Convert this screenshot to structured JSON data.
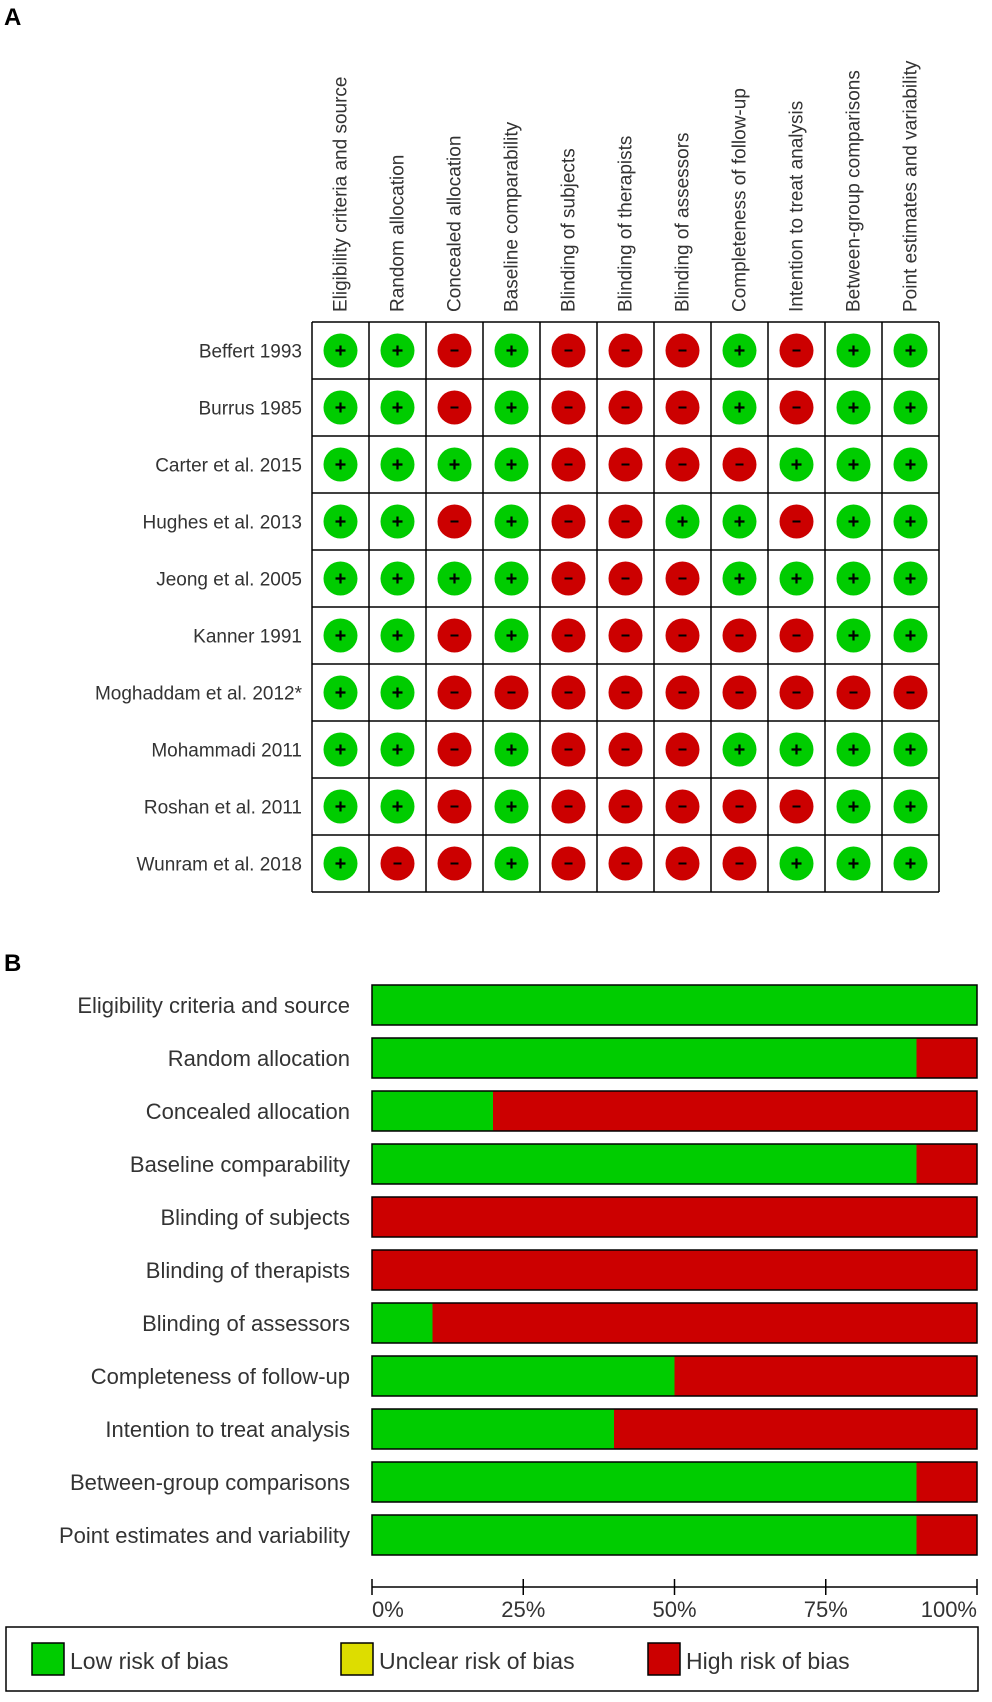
{
  "panels": {
    "a_label": "A",
    "b_label": "B"
  },
  "colors": {
    "low": "#00cc00",
    "unclear": "#dddd00",
    "high": "#cc0000",
    "border": "#000000"
  },
  "chart_data": [
    {
      "type": "table",
      "title": "",
      "columns": [
        "Eligibility criteria and source",
        "Random allocation",
        "Concealed allocation",
        "Baseline comparability",
        "Blinding of subjects",
        "Blinding of therapists",
        "Blinding of assessors",
        "Completeness of follow-up",
        "Intention to treat analysis",
        "Between-group comparisons",
        "Point estimates and variability"
      ],
      "rows": [
        "Beffert 1993",
        "Burrus 1985",
        "Carter et al. 2015",
        "Hughes et al. 2013",
        "Jeong et al. 2005",
        "Kanner 1991",
        "Moghaddam et al. 2012*",
        "Mohammadi 2011",
        "Roshan et al. 2011",
        "Wunram et al. 2018"
      ],
      "values": [
        [
          "+",
          "+",
          "-",
          "+",
          "-",
          "-",
          "-",
          "+",
          "-",
          "+",
          "+"
        ],
        [
          "+",
          "+",
          "-",
          "+",
          "-",
          "-",
          "-",
          "+",
          "-",
          "+",
          "+"
        ],
        [
          "+",
          "+",
          "+",
          "+",
          "-",
          "-",
          "-",
          "-",
          "+",
          "+",
          "+"
        ],
        [
          "+",
          "+",
          "-",
          "+",
          "-",
          "-",
          "+",
          "+",
          "-",
          "+",
          "+"
        ],
        [
          "+",
          "+",
          "+",
          "+",
          "-",
          "-",
          "-",
          "+",
          "+",
          "+",
          "+"
        ],
        [
          "+",
          "+",
          "-",
          "+",
          "-",
          "-",
          "-",
          "-",
          "-",
          "+",
          "+"
        ],
        [
          "+",
          "+",
          "-",
          "-",
          "-",
          "-",
          "-",
          "-",
          "-",
          "-",
          "-"
        ],
        [
          "+",
          "+",
          "-",
          "+",
          "-",
          "-",
          "-",
          "+",
          "+",
          "+",
          "+"
        ],
        [
          "+",
          "+",
          "-",
          "+",
          "-",
          "-",
          "-",
          "-",
          "-",
          "+",
          "+"
        ],
        [
          "+",
          "-",
          "-",
          "+",
          "-",
          "-",
          "-",
          "-",
          "+",
          "+",
          "+"
        ]
      ]
    },
    {
      "type": "bar",
      "title": "",
      "orientation": "horizontal",
      "stacked": true,
      "categories": [
        "Eligibility criteria and source",
        "Random allocation",
        "Concealed allocation",
        "Baseline comparability",
        "Blinding of subjects",
        "Blinding of therapists",
        "Blinding of assessors",
        "Completeness of follow-up",
        "Intention to treat analysis",
        "Between-group comparisons",
        "Point estimates and variability"
      ],
      "series": [
        {
          "name": "Low risk of bias",
          "values": [
            100,
            90,
            20,
            90,
            0,
            0,
            10,
            50,
            40,
            90,
            90
          ]
        },
        {
          "name": "Unclear risk of bias",
          "values": [
            0,
            0,
            0,
            0,
            0,
            0,
            0,
            0,
            0,
            0,
            0
          ]
        },
        {
          "name": "High risk of bias",
          "values": [
            0,
            10,
            80,
            10,
            100,
            100,
            90,
            50,
            60,
            10,
            10
          ]
        }
      ],
      "xlim": [
        0,
        100
      ],
      "xticks": [
        "0%",
        "25%",
        "50%",
        "75%",
        "100%"
      ],
      "legend": {
        "position": "bottom",
        "items": [
          "Low risk of bias",
          "Unclear risk of bias",
          "High risk of bias"
        ]
      }
    }
  ]
}
